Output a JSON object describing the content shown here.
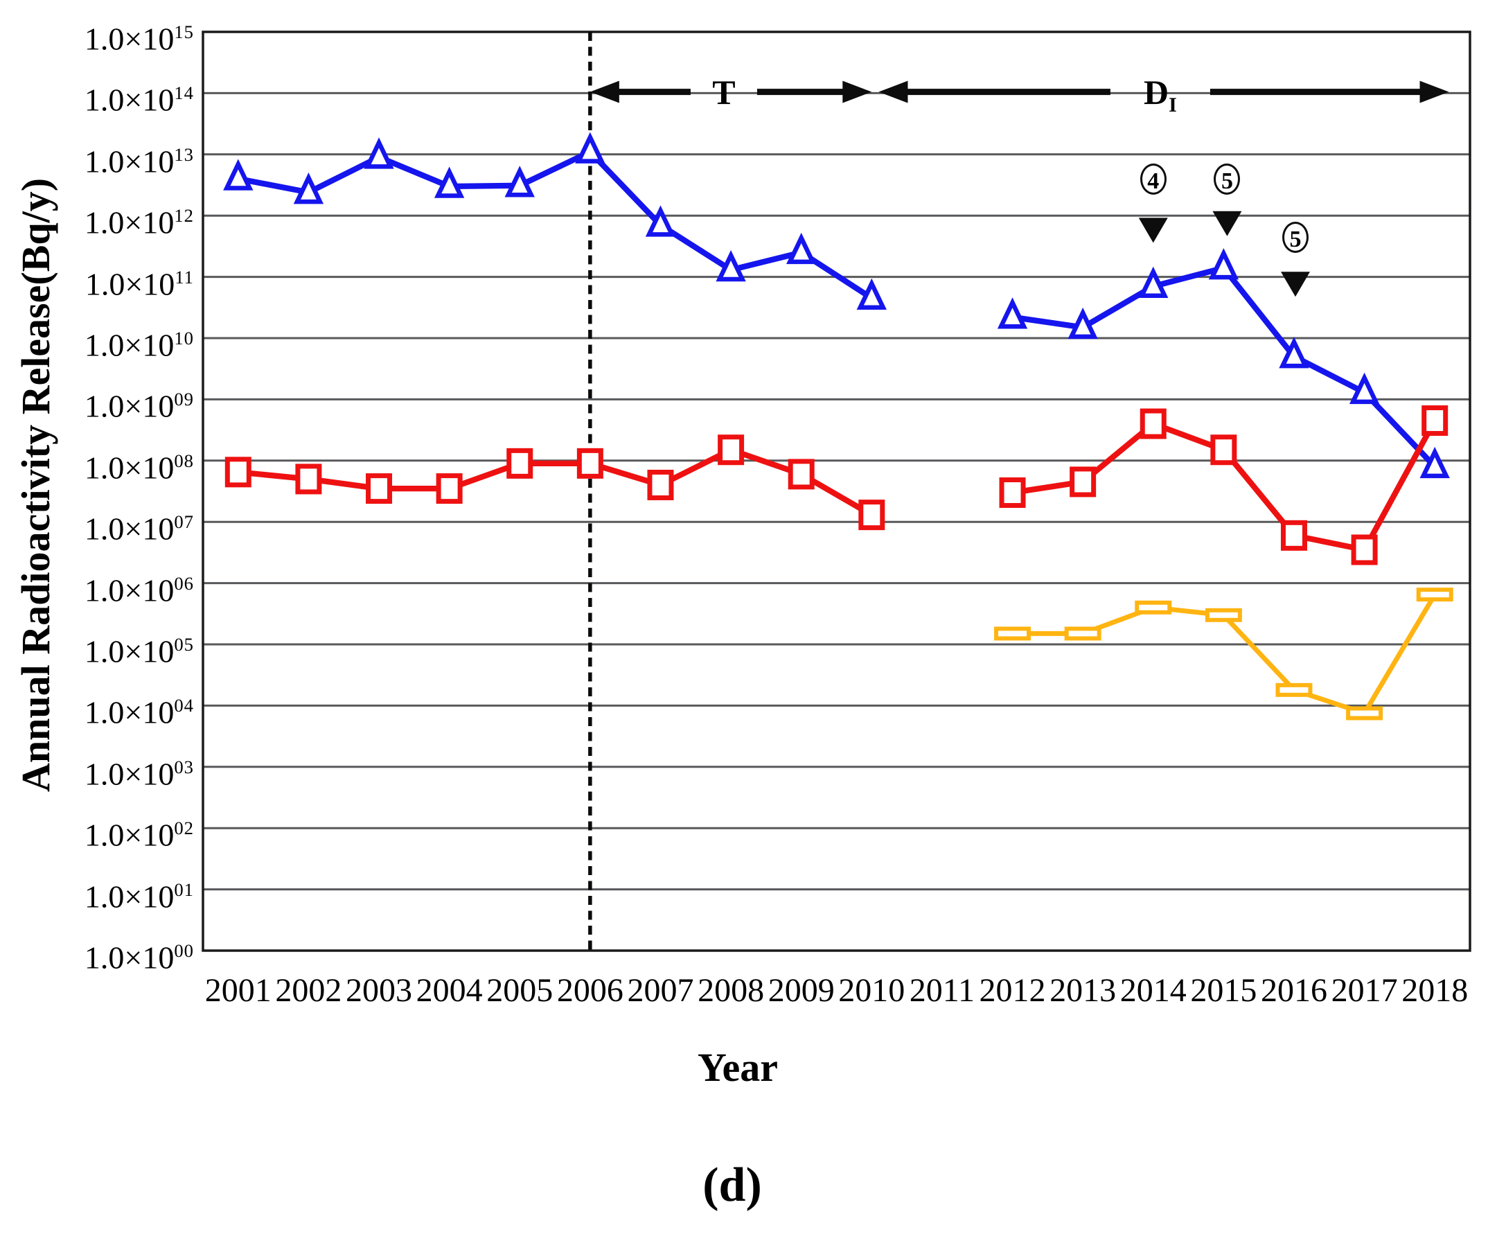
{
  "figure": {
    "caption": "(d)",
    "background": "#ffffff"
  },
  "chart_data": {
    "type": "line",
    "scale": "log",
    "grid": true,
    "legend": "none",
    "x_axis": {
      "label": "Year",
      "categories": [
        2001,
        2002,
        2003,
        2004,
        2005,
        2006,
        2007,
        2008,
        2009,
        2010,
        2011,
        2012,
        2013,
        2014,
        2015,
        2016,
        2017,
        2018
      ]
    },
    "y_axis": {
      "title": "Annual Radioactivity Release(Bq/y)",
      "tick_prefix": "1.0×10",
      "tick_exponents": [
        "15",
        "14",
        "13",
        "12",
        "11",
        "10",
        "09",
        "08",
        "07",
        "06",
        "05",
        "04",
        "03",
        "02",
        "01",
        "00"
      ],
      "min": 1.0,
      "max": 1000000000000000.0
    },
    "series": [
      {
        "name": "blue-triangle-series",
        "marker": "triangle",
        "color": "#1515ee",
        "values": [
          4000000000000.0,
          2400000000000.0,
          9000000000000.0,
          3000000000000.0,
          3100000000000.0,
          11000000000000.0,
          700000000000.0,
          130000000000.0,
          250000000000.0,
          45000000000.0,
          null,
          22000000000.0,
          15000000000.0,
          70000000000.0,
          140000000000.0,
          5000000000.0,
          1300000000.0,
          80000000.0
        ]
      },
      {
        "name": "red-square-series",
        "marker": "square",
        "color": "#ee1111",
        "values": [
          65000000.0,
          50000000.0,
          35000000.0,
          35000000.0,
          90000000.0,
          90000000.0,
          40000000.0,
          150000000.0,
          60000000.0,
          13000000.0,
          null,
          30000000.0,
          45000000.0,
          400000000.0,
          150000000.0,
          6000000.0,
          3500000.0,
          450000000.0
        ]
      },
      {
        "name": "orange-dash-series",
        "marker": "dash",
        "color": "#ffb412",
        "values": [
          null,
          null,
          null,
          null,
          null,
          null,
          null,
          null,
          null,
          null,
          null,
          150000.0,
          150000.0,
          400000.0,
          300000.0,
          18000.0,
          7500.0,
          650000.0
        ]
      }
    ],
    "annotations": {
      "dashed_line_year": 2006,
      "arrow_y_exponent": 14.02,
      "arrows": [
        {
          "label": "T",
          "subscript": "",
          "from_year": 2006.0,
          "to_year": 2010.0,
          "label_year": 2007.9
        },
        {
          "label": "D",
          "subscript": "I",
          "from_year": 2010.1,
          "to_year": 2018.2,
          "label_year": 2014.1
        }
      ],
      "circled_markers": [
        {
          "text": "4",
          "year": 2014.0,
          "circle_exponent": 12.6,
          "pointer_exponent": 11.76
        },
        {
          "text": "5",
          "year": 2015.05,
          "circle_exponent": 12.6,
          "pointer_exponent": 11.87
        },
        {
          "text": "5",
          "year": 2016.02,
          "circle_exponent": 11.65,
          "pointer_exponent": 10.88
        }
      ]
    },
    "colors": {
      "gridline": "#58595b",
      "plot_border": "#1a1a1a",
      "annotation_black": "#0d0d0d"
    }
  }
}
